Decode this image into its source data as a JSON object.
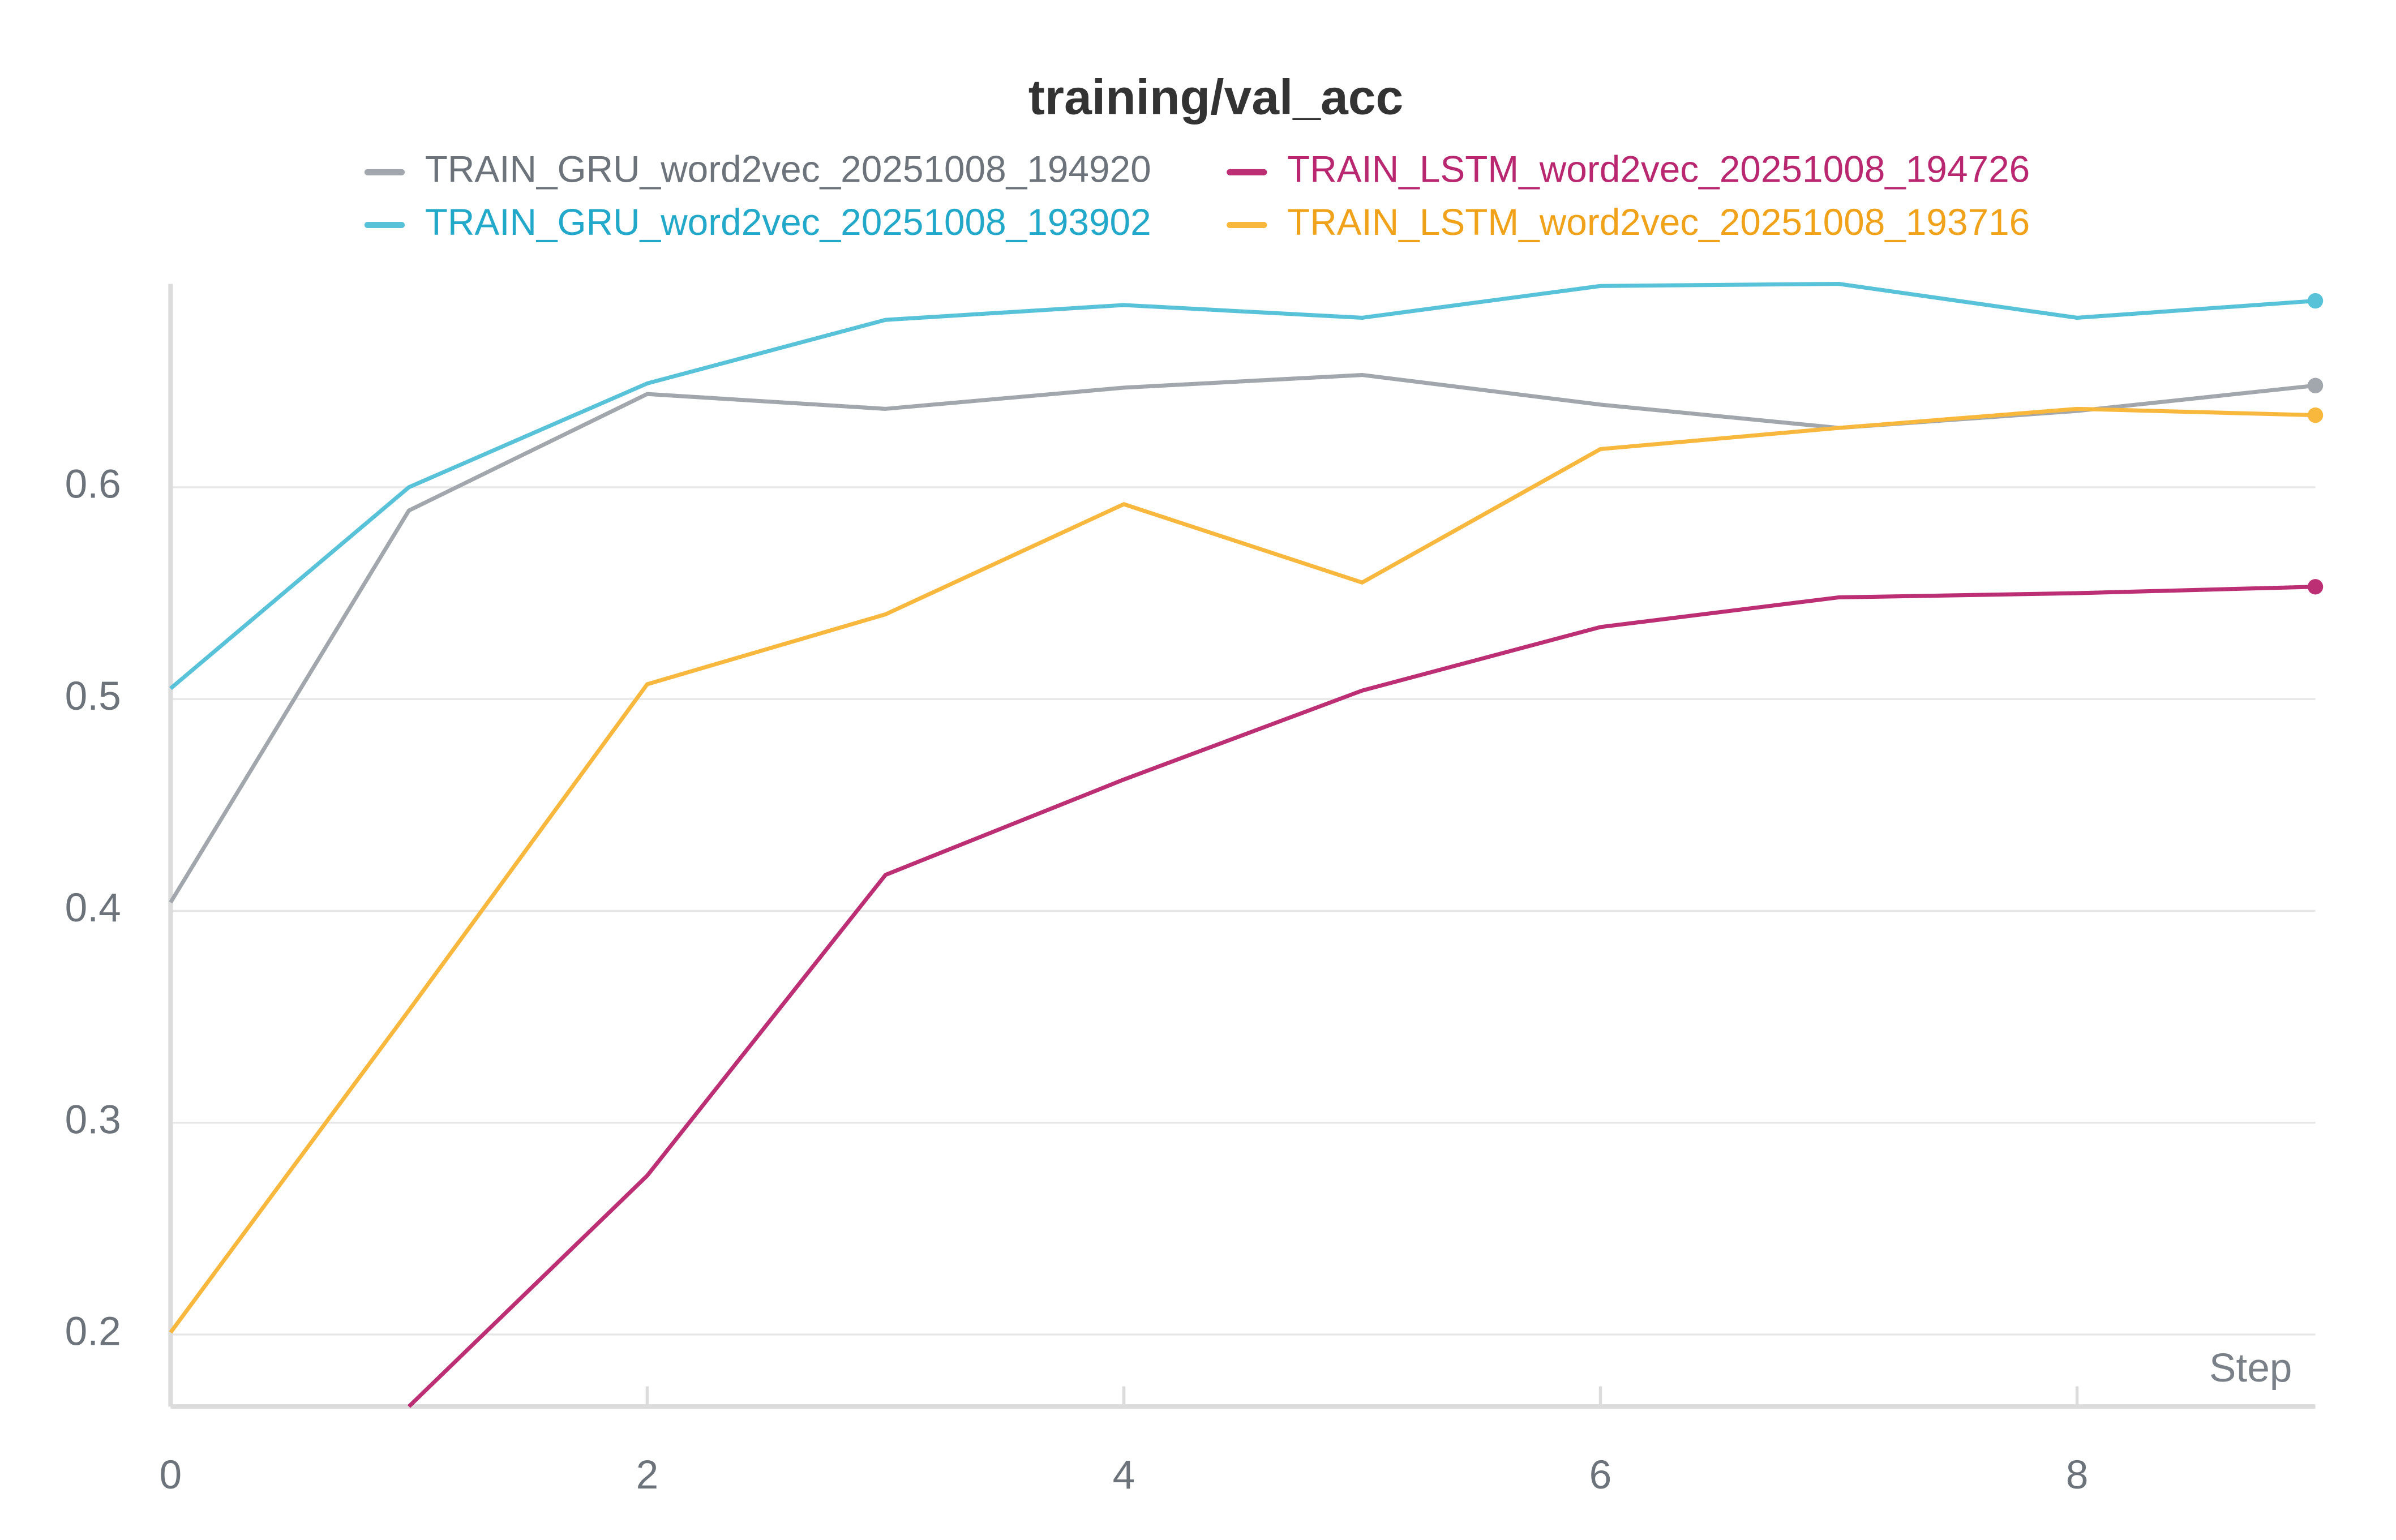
{
  "chart_data": {
    "type": "line",
    "title": "training/val_acc",
    "x_label": "Step",
    "x": [
      0,
      1,
      2,
      3,
      4,
      5,
      6,
      7,
      8,
      9
    ],
    "series": [
      {
        "name": "TRAIN_GRU_word2vec_20251008_194920",
        "color": "#a1a7ad",
        "label_color": "#6d737a",
        "values": [
          0.404,
          0.589,
          0.644,
          0.637,
          0.647,
          0.653,
          0.639,
          0.628,
          0.636,
          0.648
        ]
      },
      {
        "name": "TRAIN_LSTM_word2vec_20251008_194726",
        "color": "#bc2f74",
        "label_color": "#b8276f",
        "values": [
          null,
          0.166,
          0.275,
          0.417,
          0.462,
          0.504,
          0.534,
          0.548,
          0.55,
          0.553
        ]
      },
      {
        "name": "TRAIN_GRU_word2vec_20251008_193902",
        "color": "#58c2d8",
        "label_color": "#22a8c9",
        "values": [
          0.505,
          0.6,
          0.649,
          0.679,
          0.686,
          0.68,
          0.695,
          0.696,
          0.68,
          0.688
        ]
      },
      {
        "name": "TRAIN_LSTM_word2vec_20251008_193716",
        "color": "#f8b73d",
        "label_color": "#f0a31a",
        "values": [
          0.201,
          0.353,
          0.507,
          0.54,
          0.592,
          0.555,
          0.618,
          0.628,
          0.637,
          0.634
        ]
      }
    ],
    "xlim": [
      0,
      9
    ],
    "xticks": [
      0,
      2,
      4,
      6,
      8
    ],
    "ylim": [
      0.166,
      0.696
    ],
    "yticks": [
      0.2,
      0.3,
      0.4,
      0.5,
      0.6
    ],
    "grid": true
  }
}
